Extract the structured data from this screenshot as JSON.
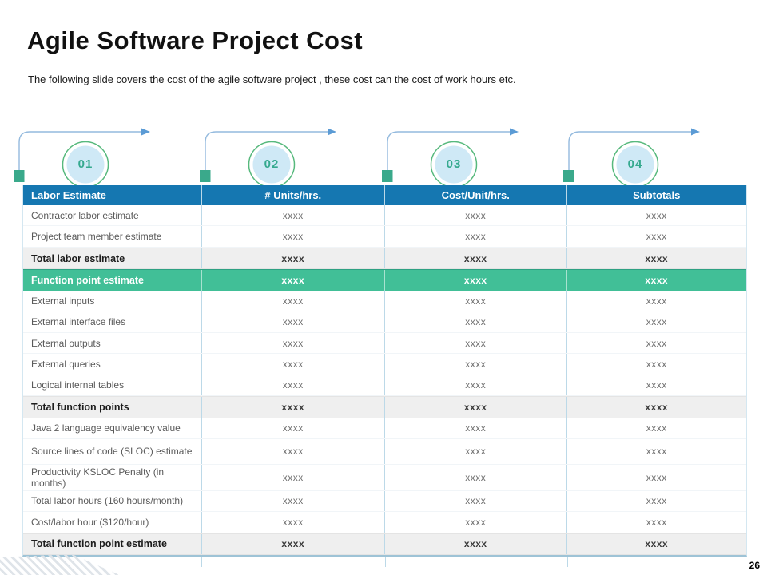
{
  "slide": {
    "title": "Agile Software Project Cost",
    "subtitle": "The following slide covers the cost of the agile software project , these cost can the cost of work hours etc.",
    "page_number": "26"
  },
  "steps": [
    {
      "label": "01"
    },
    {
      "label": "02"
    },
    {
      "label": "03"
    },
    {
      "label": "04"
    }
  ],
  "table": {
    "headers": [
      "Labor Estimate",
      "# Units/hrs.",
      "Cost/Unit/hrs.",
      "Subtotals"
    ],
    "rows": [
      {
        "label": "Contractor labor estimate",
        "values": [
          "xxxx",
          "xxxx",
          "xxxx"
        ],
        "type": "normal"
      },
      {
        "label": "Project team member estimate",
        "values": [
          "xxxx",
          "xxxx",
          "xxxx"
        ],
        "type": "normal"
      },
      {
        "label": "Total labor estimate",
        "values": [
          "xxxx",
          "xxxx",
          "xxxx"
        ],
        "type": "total"
      },
      {
        "label": "Function point estimate",
        "values": [
          "xxxx",
          "xxxx",
          "xxxx"
        ],
        "type": "highlight"
      },
      {
        "label": "External inputs",
        "values": [
          "xxxx",
          "xxxx",
          "xxxx"
        ],
        "type": "normal"
      },
      {
        "label": "External interface files",
        "values": [
          "xxxx",
          "xxxx",
          "xxxx"
        ],
        "type": "normal"
      },
      {
        "label": "External outputs",
        "values": [
          "xxxx",
          "xxxx",
          "xxxx"
        ],
        "type": "normal"
      },
      {
        "label": "External queries",
        "values": [
          "xxxx",
          "xxxx",
          "xxxx"
        ],
        "type": "normal"
      },
      {
        "label": "Logical internal tables",
        "values": [
          "xxxx",
          "xxxx",
          "xxxx"
        ],
        "type": "normal"
      },
      {
        "label": "Total function points",
        "values": [
          "xxxx",
          "xxxx",
          "xxxx"
        ],
        "type": "total"
      },
      {
        "label": "Java 2 language equivalency value",
        "values": [
          "xxxx",
          "xxxx",
          "xxxx"
        ],
        "type": "normal"
      },
      {
        "label": "Source lines of code (SLOC) estimate",
        "values": [
          "xxxx",
          "xxxx",
          "xxxx"
        ],
        "type": "normal"
      },
      {
        "label": "Productivity KSLOC Penalty (in months)",
        "values": [
          "xxxx",
          "xxxx",
          "xxxx"
        ],
        "type": "normal"
      },
      {
        "label": "Total labor hours (160 hours/month)",
        "values": [
          "xxxx",
          "xxxx",
          "xxxx"
        ],
        "type": "normal"
      },
      {
        "label": "Cost/labor hour ($120/hour)",
        "values": [
          "xxxx",
          "xxxx",
          "xxxx"
        ],
        "type": "normal"
      },
      {
        "label": "Total function point estimate",
        "values": [
          "xxxx",
          "xxxx",
          "xxxx"
        ],
        "type": "total"
      }
    ]
  },
  "colors": {
    "header_bg": "#1577b1",
    "highlight_bg": "#41bf97",
    "total_bg": "#efefef",
    "accent_square": "#3aa98b",
    "circle_ring": "#57b97d",
    "circle_fill": "#cfe9f6",
    "step_number": "#35a98e",
    "arrow_line": "#94bade",
    "arrow_head": "#5b9bd5",
    "grid_line": "#bcd9e8"
  }
}
